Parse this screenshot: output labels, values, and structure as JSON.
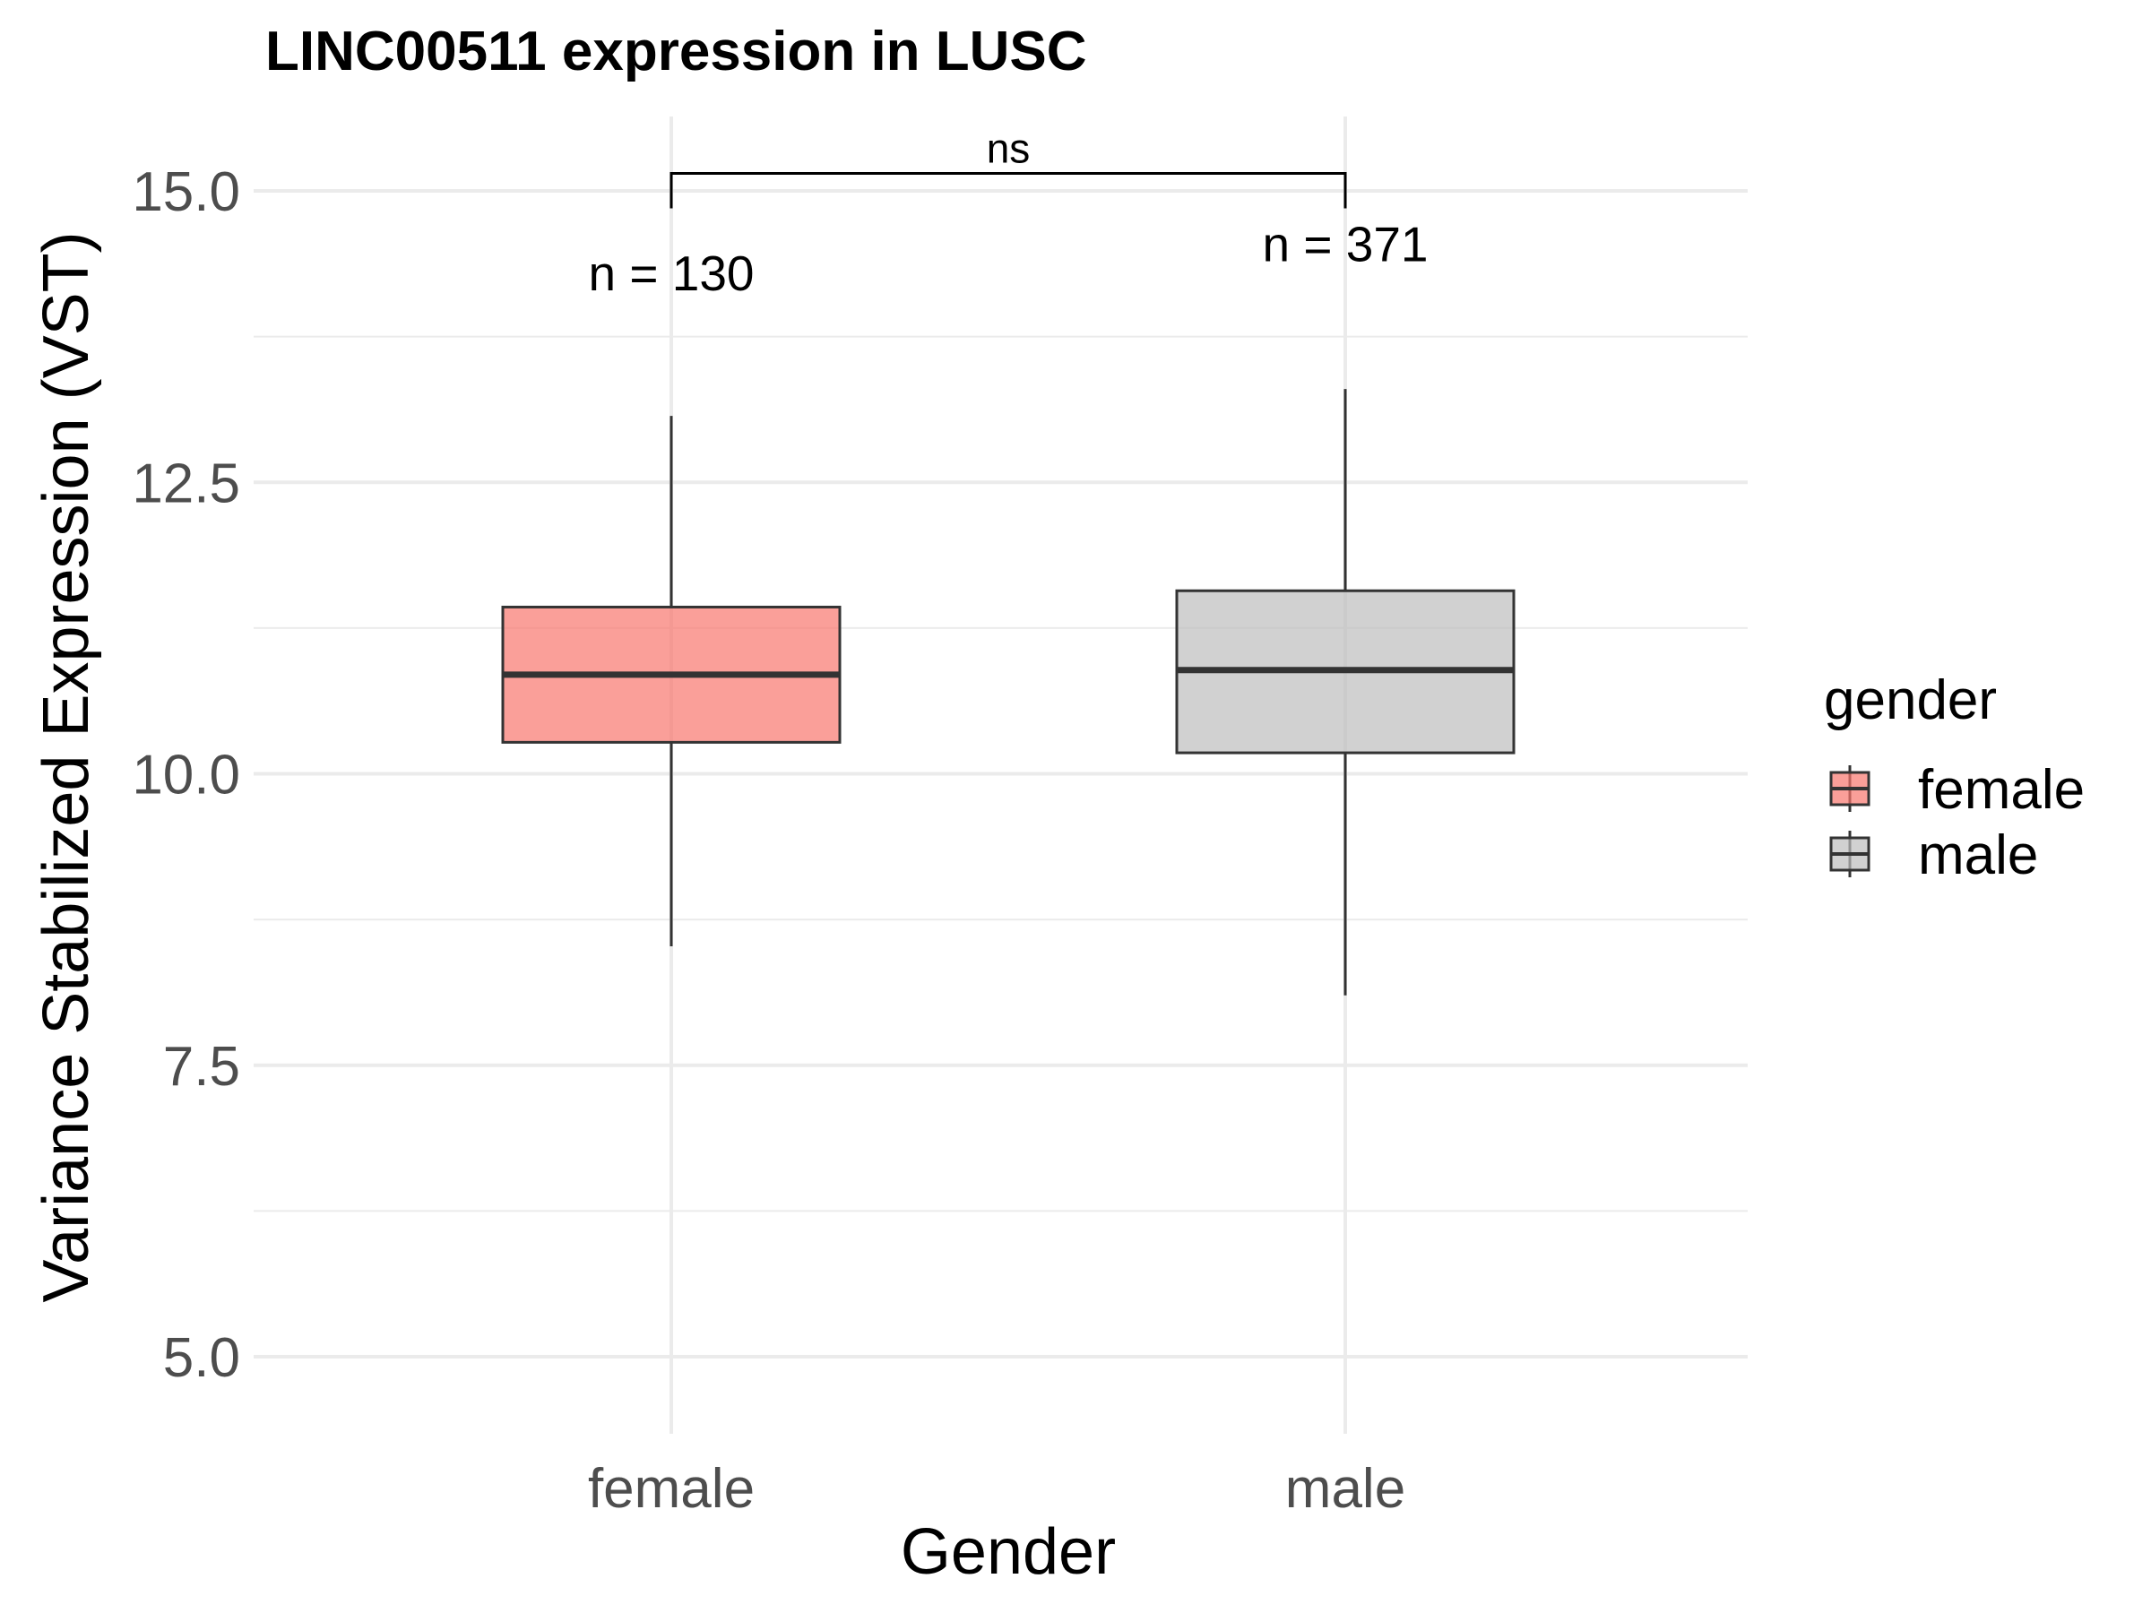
{
  "chart_data": {
    "type": "boxplot",
    "title": "LINC00511 expression in LUSC",
    "xlabel": "Gender",
    "ylabel": "Variance Stabilized Expression (VST)",
    "categories": [
      "female",
      "male"
    ],
    "ylim": [
      4.4,
      15.6
    ],
    "y_ticks": [
      5.0,
      7.5,
      10.0,
      12.5,
      15.0
    ],
    "y_tick_labels": [
      "5.0",
      "7.5",
      "10.0",
      "12.5",
      "15.0"
    ],
    "grid": true,
    "boxes": [
      {
        "group": "female",
        "whisker_low": 8.52,
        "q1": 10.27,
        "median": 10.85,
        "q3": 11.43,
        "whisker_high": 13.07,
        "n_label": "n = 130",
        "n_label_y": 14.3,
        "color": "#F8766D"
      },
      {
        "group": "male",
        "whisker_low": 8.1,
        "q1": 10.18,
        "median": 10.89,
        "q3": 11.57,
        "whisker_high": 13.3,
        "n_label": "n = 371",
        "n_label_y": 14.55,
        "color": "#BEBEBE"
      }
    ],
    "comparison": {
      "groups": [
        "female",
        "male"
      ],
      "label": "ns",
      "y": 15.15,
      "tick_bottom": 14.85
    },
    "legend": {
      "title": "gender",
      "placement": "right",
      "items": [
        {
          "label": "female",
          "color": "#F8766D"
        },
        {
          "label": "male",
          "color": "#BEBEBE"
        }
      ]
    }
  }
}
